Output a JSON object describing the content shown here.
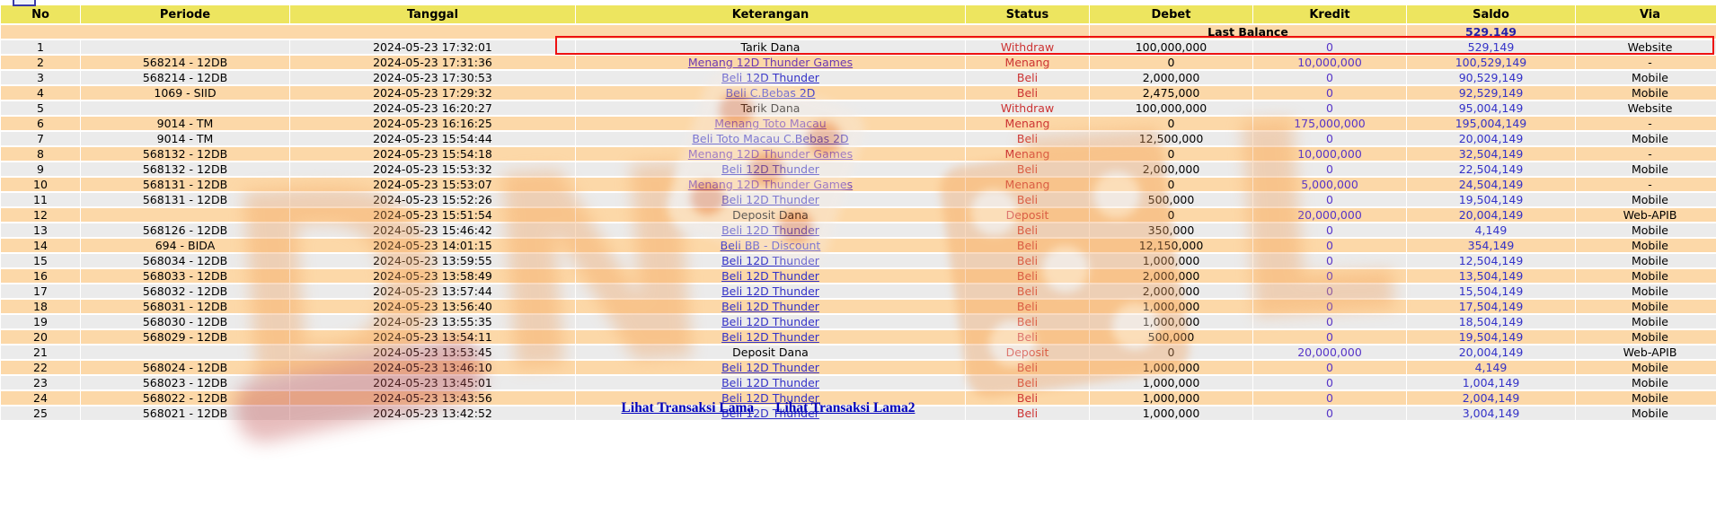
{
  "page": {
    "pagination_partial_label": ""
  },
  "colors": {
    "header_bg": "#ede55f",
    "row_odd": "#ebebeb",
    "row_even": "#fcd8a8",
    "status_red": "#cc3333",
    "link_blue": "#3432c8",
    "link_purple": "#6a38b3",
    "value_blue": "#3432c8",
    "kredit_purple": "#5634c8",
    "balance_navy": "#2222aa",
    "highlight_red": "#ee1111",
    "watermark_orange": "#f2a35e"
  },
  "table": {
    "columns": [
      "No",
      "Periode",
      "Tanggal",
      "Keterangan",
      "Status",
      "Debet",
      "Kredit",
      "Saldo",
      "Via"
    ],
    "last_balance": {
      "label": "Last Balance",
      "value": "529,149"
    },
    "rows": [
      {
        "no": "1",
        "periode": "",
        "tanggal": "2024-05-23 17:32:01",
        "keterangan": "Tarik Dana",
        "is_link": false,
        "status": "Withdraw",
        "debet": "100,000,000",
        "kredit": "0",
        "saldo": "529,149",
        "via": "Website",
        "highlighted": true
      },
      {
        "no": "2",
        "periode": "568214 - 12DB",
        "tanggal": "2024-05-23 17:31:36",
        "keterangan": "Menang 12D Thunder Games",
        "is_link": true,
        "status": "Menang",
        "debet": "0",
        "kredit": "10,000,000",
        "saldo": "100,529,149",
        "via": "-",
        "highlighted": false
      },
      {
        "no": "3",
        "periode": "568214 - 12DB",
        "tanggal": "2024-05-23 17:30:53",
        "keterangan": "Beli 12D Thunder",
        "is_link": true,
        "status": "Beli",
        "debet": "2,000,000",
        "kredit": "0",
        "saldo": "90,529,149",
        "via": "Mobile",
        "highlighted": false
      },
      {
        "no": "4",
        "periode": "1069 - SIID",
        "tanggal": "2024-05-23 17:29:32",
        "keterangan": "Beli C.Bebas 2D",
        "is_link": true,
        "status": "Beli",
        "debet": "2,475,000",
        "kredit": "0",
        "saldo": "92,529,149",
        "via": "Mobile",
        "highlighted": false
      },
      {
        "no": "5",
        "periode": "",
        "tanggal": "2024-05-23 16:20:27",
        "keterangan": "Tarik Dana",
        "is_link": false,
        "status": "Withdraw",
        "debet": "100,000,000",
        "kredit": "0",
        "saldo": "95,004,149",
        "via": "Website",
        "highlighted": false
      },
      {
        "no": "6",
        "periode": "9014 - TM",
        "tanggal": "2024-05-23 16:16:25",
        "keterangan": "Menang Toto Macau",
        "is_link": true,
        "status": "Menang",
        "debet": "0",
        "kredit": "175,000,000",
        "saldo": "195,004,149",
        "via": "-",
        "highlighted": false
      },
      {
        "no": "7",
        "periode": "9014 - TM",
        "tanggal": "2024-05-23 15:54:44",
        "keterangan": "Beli Toto Macau C.Bebas 2D",
        "is_link": true,
        "status": "Beli",
        "debet": "12,500,000",
        "kredit": "0",
        "saldo": "20,004,149",
        "via": "Mobile",
        "highlighted": false
      },
      {
        "no": "8",
        "periode": "568132 - 12DB",
        "tanggal": "2024-05-23 15:54:18",
        "keterangan": "Menang 12D Thunder Games",
        "is_link": true,
        "status": "Menang",
        "debet": "0",
        "kredit": "10,000,000",
        "saldo": "32,504,149",
        "via": "-",
        "highlighted": false
      },
      {
        "no": "9",
        "periode": "568132 - 12DB",
        "tanggal": "2024-05-23 15:53:32",
        "keterangan": "Beli 12D Thunder",
        "is_link": true,
        "status": "Beli",
        "debet": "2,000,000",
        "kredit": "0",
        "saldo": "22,504,149",
        "via": "Mobile",
        "highlighted": false
      },
      {
        "no": "10",
        "periode": "568131 - 12DB",
        "tanggal": "2024-05-23 15:53:07",
        "keterangan": "Menang 12D Thunder Games",
        "is_link": true,
        "status": "Menang",
        "debet": "0",
        "kredit": "5,000,000",
        "saldo": "24,504,149",
        "via": "-",
        "highlighted": false
      },
      {
        "no": "11",
        "periode": "568131 - 12DB",
        "tanggal": "2024-05-23 15:52:26",
        "keterangan": "Beli 12D Thunder",
        "is_link": true,
        "status": "Beli",
        "debet": "500,000",
        "kredit": "0",
        "saldo": "19,504,149",
        "via": "Mobile",
        "highlighted": false
      },
      {
        "no": "12",
        "periode": "",
        "tanggal": "2024-05-23 15:51:54",
        "keterangan": "Deposit Dana",
        "is_link": false,
        "status": "Deposit",
        "debet": "0",
        "kredit": "20,000,000",
        "saldo": "20,004,149",
        "via": "Web-APIB",
        "highlighted": false
      },
      {
        "no": "13",
        "periode": "568126 - 12DB",
        "tanggal": "2024-05-23 15:46:42",
        "keterangan": "Beli 12D Thunder",
        "is_link": true,
        "status": "Beli",
        "debet": "350,000",
        "kredit": "0",
        "saldo": "4,149",
        "via": "Mobile",
        "highlighted": false
      },
      {
        "no": "14",
        "periode": "694 - BIDA",
        "tanggal": "2024-05-23 14:01:15",
        "keterangan": "Beli BB - Discount",
        "is_link": true,
        "status": "Beli",
        "debet": "12,150,000",
        "kredit": "0",
        "saldo": "354,149",
        "via": "Mobile",
        "highlighted": false
      },
      {
        "no": "15",
        "periode": "568034 - 12DB",
        "tanggal": "2024-05-23 13:59:55",
        "keterangan": "Beli 12D Thunder",
        "is_link": true,
        "status": "Beli",
        "debet": "1,000,000",
        "kredit": "0",
        "saldo": "12,504,149",
        "via": "Mobile",
        "highlighted": false
      },
      {
        "no": "16",
        "periode": "568033 - 12DB",
        "tanggal": "2024-05-23 13:58:49",
        "keterangan": "Beli 12D Thunder",
        "is_link": true,
        "status": "Beli",
        "debet": "2,000,000",
        "kredit": "0",
        "saldo": "13,504,149",
        "via": "Mobile",
        "highlighted": false
      },
      {
        "no": "17",
        "periode": "568032 - 12DB",
        "tanggal": "2024-05-23 13:57:44",
        "keterangan": "Beli 12D Thunder",
        "is_link": true,
        "status": "Beli",
        "debet": "2,000,000",
        "kredit": "0",
        "saldo": "15,504,149",
        "via": "Mobile",
        "highlighted": false
      },
      {
        "no": "18",
        "periode": "568031 - 12DB",
        "tanggal": "2024-05-23 13:56:40",
        "keterangan": "Beli 12D Thunder",
        "is_link": true,
        "status": "Beli",
        "debet": "1,000,000",
        "kredit": "0",
        "saldo": "17,504,149",
        "via": "Mobile",
        "highlighted": false
      },
      {
        "no": "19",
        "periode": "568030 - 12DB",
        "tanggal": "2024-05-23 13:55:35",
        "keterangan": "Beli 12D Thunder",
        "is_link": true,
        "status": "Beli",
        "debet": "1,000,000",
        "kredit": "0",
        "saldo": "18,504,149",
        "via": "Mobile",
        "highlighted": false
      },
      {
        "no": "20",
        "periode": "568029 - 12DB",
        "tanggal": "2024-05-23 13:54:11",
        "keterangan": "Beli 12D Thunder",
        "is_link": true,
        "status": "Beli",
        "debet": "500,000",
        "kredit": "0",
        "saldo": "19,504,149",
        "via": "Mobile",
        "highlighted": false
      },
      {
        "no": "21",
        "periode": "",
        "tanggal": "2024-05-23 13:53:45",
        "keterangan": "Deposit Dana",
        "is_link": false,
        "status": "Deposit",
        "debet": "0",
        "kredit": "20,000,000",
        "saldo": "20,004,149",
        "via": "Web-APIB",
        "highlighted": false
      },
      {
        "no": "22",
        "periode": "568024 - 12DB",
        "tanggal": "2024-05-23 13:46:10",
        "keterangan": "Beli 12D Thunder",
        "is_link": true,
        "status": "Beli",
        "debet": "1,000,000",
        "kredit": "0",
        "saldo": "4,149",
        "via": "Mobile",
        "highlighted": false
      },
      {
        "no": "23",
        "periode": "568023 - 12DB",
        "tanggal": "2024-05-23 13:45:01",
        "keterangan": "Beli 12D Thunder",
        "is_link": true,
        "status": "Beli",
        "debet": "1,000,000",
        "kredit": "0",
        "saldo": "1,004,149",
        "via": "Mobile",
        "highlighted": false
      },
      {
        "no": "24",
        "periode": "568022 - 12DB",
        "tanggal": "2024-05-23 13:43:56",
        "keterangan": "Beli 12D Thunder",
        "is_link": true,
        "status": "Beli",
        "debet": "1,000,000",
        "kredit": "0",
        "saldo": "2,004,149",
        "via": "Mobile",
        "highlighted": false
      },
      {
        "no": "25",
        "periode": "568021 - 12DB",
        "tanggal": "2024-05-23 13:42:52",
        "keterangan": "Beli 12D Thunder",
        "is_link": true,
        "status": "Beli",
        "debet": "1,000,000",
        "kredit": "0",
        "saldo": "3,004,149",
        "via": "Mobile",
        "highlighted": false
      }
    ],
    "footer_links": [
      "Lihat Transaksi Lama",
      "Lihat Transaksi Lama2"
    ]
  }
}
